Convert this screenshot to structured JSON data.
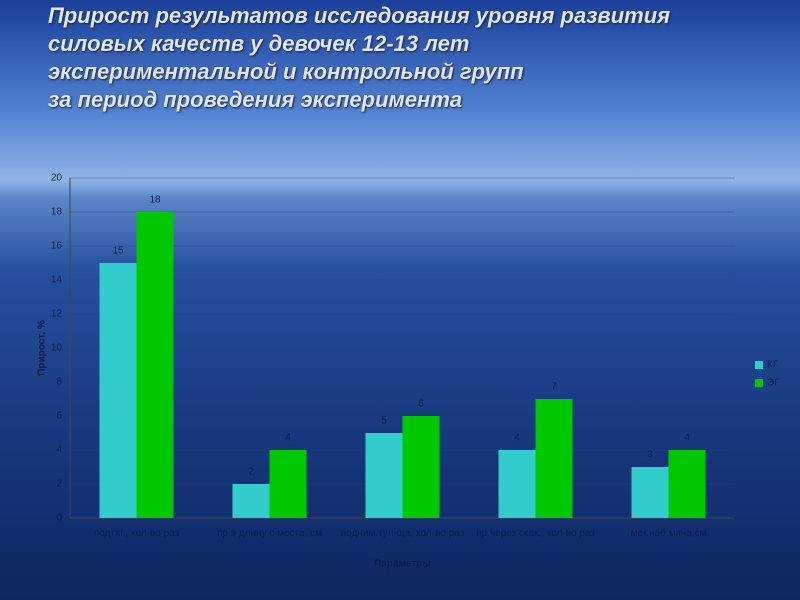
{
  "chart_data": {
    "type": "bar",
    "title": [
      "Прирост результатов исследования уровня развития",
      "силовых качеств у девочек 12-13 лет",
      "экспериментальной и контрольной групп",
      "за период проведения эксперимента"
    ],
    "x_label": "Параметры",
    "y_label": "Прирост, %",
    "categories": [
      "подтяг., кол-во раз",
      "пр.в длину с места, см",
      "подним.тул-ща, кол-во раз",
      "пр.через скак., кол-во раз",
      "мет.наб.мяча,см"
    ],
    "series": [
      {
        "name": "КГ",
        "color": "#33cccc",
        "values": [
          15,
          2,
          5,
          4,
          3
        ]
      },
      {
        "name": "ЭГ",
        "color": "#00c800",
        "values": [
          18,
          4,
          6,
          7,
          4
        ]
      }
    ],
    "ylim": [
      0,
      20
    ],
    "yticks": [
      0,
      2,
      4,
      6,
      8,
      10,
      12,
      14,
      16,
      18,
      20
    ],
    "grid": true,
    "legend": "right"
  }
}
